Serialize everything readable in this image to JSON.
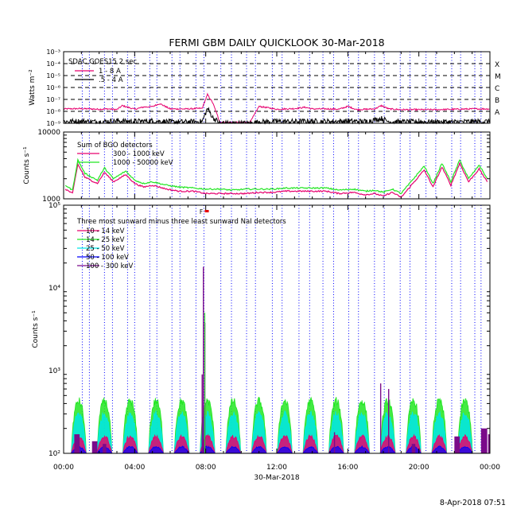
{
  "title": "FERMI GBM DAILY QUICKLOOK   30-Mar-2018",
  "footer": "8-Apr-2018 07:51",
  "colors": {
    "magenta": "#e6006e",
    "black": "#000000",
    "green": "#22e622",
    "cyan": "#00e6e6",
    "blue": "#0000ff",
    "purple": "#7a0a8a",
    "red": "#e60000"
  },
  "chart_data": [
    {
      "type": "line",
      "panel": "goes",
      "ylabel": "Watts m⁻²",
      "yscale": "log",
      "ylim": [
        1e-09,
        0.001
      ],
      "y_ticks": [
        "10⁻³",
        "10⁻⁴",
        "10⁻⁵",
        "10⁻⁶",
        "10⁻⁷",
        "10⁻⁸",
        "10⁻⁹"
      ],
      "flare_classes": [
        "X",
        "M",
        "C",
        "B",
        "A"
      ],
      "legend_title": "SDAC GOES15 2 sec",
      "series": [
        {
          "name": "1 - 8 A",
          "color": "#e6006e",
          "x": [
            0,
            1,
            2,
            2.5,
            3.0,
            3.3,
            4.0,
            4.5,
            5.0,
            5.4,
            6.0,
            7.0,
            7.8,
            8.1,
            8.4,
            8.8,
            9.5,
            10.5,
            11.0,
            11.5,
            12.0,
            12.5,
            13.0,
            13.6,
            14.0,
            15.0,
            15.5,
            16.0,
            16.5,
            17.0,
            17.5,
            17.9,
            18.3,
            19.0,
            20.0,
            21.0,
            22.0,
            23.0,
            24.0
          ],
          "y": [
            1.6e-08,
            1.7e-08,
            1.5e-08,
            1.6e-08,
            1.4e-08,
            3e-08,
            1.5e-08,
            2.3e-08,
            2.5e-08,
            4.5e-08,
            1.6e-08,
            1.6e-08,
            1.8e-08,
            2.6e-07,
            5e-08,
            1.2e-09,
            1.2e-09,
            1.2e-09,
            2.6e-08,
            2e-08,
            1.5e-08,
            1.6e-08,
            1.7e-08,
            2.2e-08,
            1.6e-08,
            1.6e-08,
            1.5e-08,
            2.6e-08,
            1.4e-08,
            1.5e-08,
            1.6e-08,
            3e-08,
            1.6e-08,
            1.4e-08,
            1.4e-08,
            1.4e-08,
            1.5e-08,
            1.6e-08,
            1.6e-08
          ]
        },
        {
          "name": ".5 - 4 A",
          "color": "#000000",
          "x": [
            0,
            1,
            2,
            3,
            4,
            5,
            6,
            7,
            7.8,
            8.1,
            8.4,
            8.8,
            10.5,
            11.0,
            12,
            13,
            14,
            15,
            16,
            17,
            17.9,
            18.3,
            19,
            20,
            21,
            22,
            23,
            24
          ],
          "y": [
            1.4e-09,
            1.5e-09,
            1.3e-09,
            1.6e-09,
            1.4e-09,
            1.6e-09,
            1.3e-09,
            1.3e-09,
            1.4e-09,
            1.8e-08,
            3e-09,
            1e-09,
            1e-09,
            1.3e-09,
            1.4e-09,
            1.4e-09,
            1.5e-09,
            1.4e-09,
            1.5e-09,
            1.4e-09,
            2.5e-09,
            1.4e-09,
            1.3e-09,
            1.3e-09,
            1.3e-09,
            1.3e-09,
            1.4e-09,
            1.4e-09
          ]
        }
      ]
    },
    {
      "type": "line",
      "panel": "bgo",
      "ylabel": "Counts s⁻¹",
      "yscale": "log",
      "ylim": [
        1000,
        10000
      ],
      "y_ticks": [
        "10000",
        "1000"
      ],
      "legend_title": "Sum of BGO detectors",
      "series": [
        {
          "name": "300 - 1000 keV",
          "color": "#e6006e",
          "x": [
            0.1,
            0.5,
            0.8,
            1.2,
            1.9,
            2.3,
            2.8,
            3.5,
            4.0,
            4.5,
            5.0,
            5.8,
            6.5,
            7.3,
            8.0,
            8.8,
            9.5,
            10.3,
            11.0,
            11.8,
            12.5,
            13.3,
            14.0,
            14.8,
            15.5,
            16.3,
            17.0,
            17.5,
            18.0,
            18.5,
            19.0,
            20.3,
            20.8,
            21.3,
            21.8,
            22.3,
            22.8,
            23.4,
            23.9
          ],
          "y": [
            1400,
            1200,
            3300,
            2100,
            1700,
            2500,
            1800,
            2300,
            1700,
            1500,
            1600,
            1400,
            1300,
            1300,
            1200,
            1200,
            1200,
            1200,
            1250,
            1250,
            1300,
            1300,
            1300,
            1300,
            1200,
            1250,
            1150,
            1200,
            1100,
            1250,
            1050,
            2700,
            1500,
            3000,
            1600,
            3400,
            1800,
            2800,
            1700
          ]
        },
        {
          "name": "1000 - 50000 keV",
          "color": "#22e622",
          "x": [
            0.1,
            0.5,
            0.8,
            1.2,
            1.9,
            2.3,
            2.8,
            3.5,
            4.0,
            4.5,
            5.0,
            5.8,
            6.5,
            7.3,
            8.0,
            8.8,
            9.5,
            10.3,
            11.0,
            11.8,
            12.5,
            13.3,
            14.0,
            14.8,
            15.5,
            16.3,
            17.0,
            17.5,
            18.0,
            18.5,
            19.0,
            20.3,
            20.8,
            21.3,
            21.8,
            22.3,
            22.8,
            23.4,
            23.9
          ],
          "y": [
            1600,
            1350,
            3800,
            2400,
            1900,
            2900,
            2000,
            2600,
            1900,
            1700,
            1800,
            1600,
            1500,
            1450,
            1400,
            1400,
            1350,
            1400,
            1400,
            1400,
            1450,
            1450,
            1450,
            1450,
            1350,
            1400,
            1300,
            1350,
            1250,
            1400,
            1200,
            3100,
            1700,
            3400,
            1800,
            3800,
            2000,
            3200,
            1900
          ]
        }
      ]
    },
    {
      "type": "line",
      "panel": "nai",
      "ylabel": "Counts s⁻¹",
      "yscale": "log",
      "ylim": [
        100,
        100000
      ],
      "y_ticks": [
        "10⁵",
        "10⁴",
        "10³",
        "10²"
      ],
      "legend_title": "Three most sunward minus three least sunward NaI detectors",
      "flare_marker": "F",
      "x_ticks": [
        "00:00",
        "04:00",
        "08:00",
        "12:00",
        "16:00",
        "20:00",
        "00:00"
      ],
      "xlabel": "30-Mar-2018",
      "xlim": [
        0,
        24
      ],
      "series": [
        {
          "name": "10 - 14 keV",
          "color": "#e6006e",
          "peak": 160
        },
        {
          "name": "14 - 25 keV",
          "color": "#22e622",
          "peak": 430
        },
        {
          "name": "25 - 50 keV",
          "color": "#00e6e6",
          "peak": 300
        },
        {
          "name": "50 - 100 keV",
          "color": "#0000ff",
          "peak": 120
        },
        {
          "name": "100 - 300 keV",
          "color": "#7a0a8a",
          "peak": 18000
        }
      ]
    }
  ]
}
